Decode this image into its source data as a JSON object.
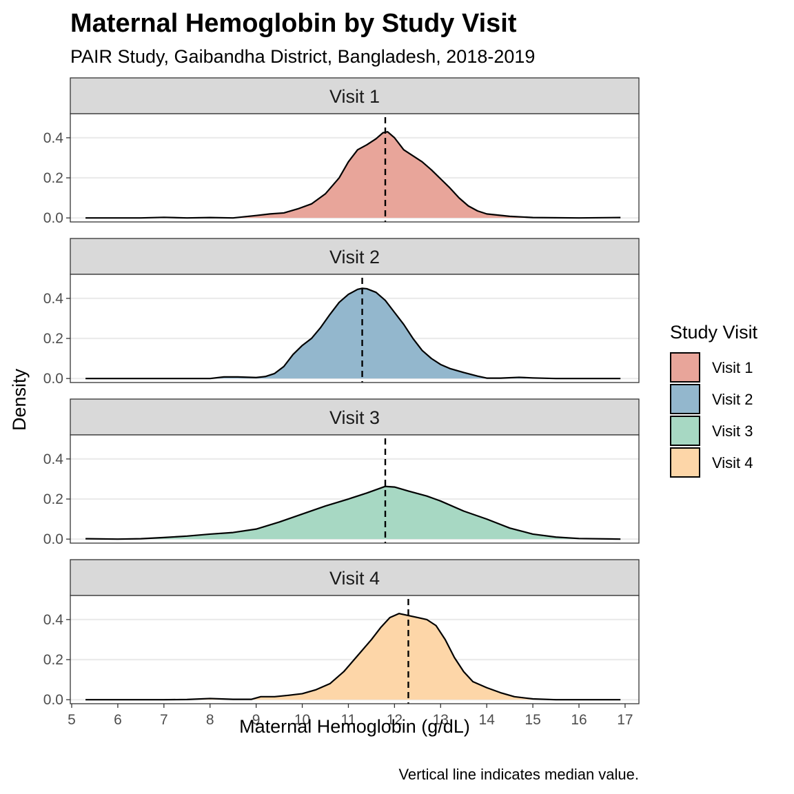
{
  "chart_data": {
    "type": "area",
    "title": "Maternal Hemoglobin by Study Visit",
    "subtitle": "PAIR Study, Gaibandha District, Bangladesh, 2018-2019",
    "xlabel": "Maternal Hemoglobin (g/dL)",
    "ylabel": "Density",
    "caption": "Vertical line indicates median value.",
    "xlim": [
      4.97,
      17.3
    ],
    "ylim": [
      -0.02,
      0.52
    ],
    "x_ticks": [
      5,
      6,
      7,
      8,
      9,
      10,
      11,
      12,
      13,
      14,
      15,
      16,
      17
    ],
    "y_ticks": [
      0.0,
      0.2,
      0.4
    ],
    "y_tick_labels": [
      "0.0",
      "0.2",
      "0.4"
    ],
    "grid": "horizontal major lines",
    "legend": {
      "title": "Study Visit",
      "position": "right"
    },
    "series": [
      {
        "name": "Visit 1",
        "facet_label": "Visit 1",
        "color": "#E8A59A",
        "median": 11.8,
        "points": [
          [
            5.3,
            0.0
          ],
          [
            6.5,
            0.0
          ],
          [
            7.0,
            0.003
          ],
          [
            7.5,
            0.0
          ],
          [
            8.0,
            0.002
          ],
          [
            8.5,
            0.0
          ],
          [
            9.0,
            0.012
          ],
          [
            9.3,
            0.02
          ],
          [
            9.6,
            0.025
          ],
          [
            9.9,
            0.045
          ],
          [
            10.2,
            0.07
          ],
          [
            10.5,
            0.12
          ],
          [
            10.8,
            0.2
          ],
          [
            11.0,
            0.28
          ],
          [
            11.2,
            0.34
          ],
          [
            11.4,
            0.365
          ],
          [
            11.6,
            0.395
          ],
          [
            11.75,
            0.425
          ],
          [
            11.85,
            0.43
          ],
          [
            12.0,
            0.4
          ],
          [
            12.2,
            0.34
          ],
          [
            12.4,
            0.31
          ],
          [
            12.6,
            0.28
          ],
          [
            12.8,
            0.24
          ],
          [
            13.0,
            0.195
          ],
          [
            13.2,
            0.15
          ],
          [
            13.4,
            0.1
          ],
          [
            13.6,
            0.06
          ],
          [
            13.8,
            0.035
          ],
          [
            14.0,
            0.02
          ],
          [
            14.5,
            0.008
          ],
          [
            15.0,
            0.002
          ],
          [
            16.0,
            0.0
          ],
          [
            16.9,
            0.002
          ]
        ]
      },
      {
        "name": "Visit 2",
        "facet_label": "Visit 2",
        "color": "#93B7CD",
        "median": 11.3,
        "points": [
          [
            5.3,
            0.0
          ],
          [
            7.0,
            0.0
          ],
          [
            8.0,
            0.0
          ],
          [
            8.3,
            0.008
          ],
          [
            8.6,
            0.008
          ],
          [
            9.0,
            0.005
          ],
          [
            9.2,
            0.01
          ],
          [
            9.4,
            0.025
          ],
          [
            9.6,
            0.06
          ],
          [
            9.8,
            0.12
          ],
          [
            10.0,
            0.165
          ],
          [
            10.2,
            0.2
          ],
          [
            10.4,
            0.255
          ],
          [
            10.6,
            0.32
          ],
          [
            10.8,
            0.38
          ],
          [
            11.0,
            0.42
          ],
          [
            11.2,
            0.445
          ],
          [
            11.3,
            0.45
          ],
          [
            11.4,
            0.448
          ],
          [
            11.6,
            0.43
          ],
          [
            11.8,
            0.39
          ],
          [
            12.0,
            0.33
          ],
          [
            12.2,
            0.27
          ],
          [
            12.4,
            0.2
          ],
          [
            12.6,
            0.14
          ],
          [
            12.8,
            0.1
          ],
          [
            13.0,
            0.07
          ],
          [
            13.2,
            0.05
          ],
          [
            13.5,
            0.03
          ],
          [
            13.8,
            0.012
          ],
          [
            14.0,
            0.002
          ],
          [
            14.3,
            0.002
          ],
          [
            14.7,
            0.006
          ],
          [
            15.0,
            0.003
          ],
          [
            15.5,
            0.0
          ],
          [
            16.9,
            0.0
          ]
        ]
      },
      {
        "name": "Visit 3",
        "facet_label": "Visit 3",
        "color": "#A7D8C3",
        "median": 11.8,
        "points": [
          [
            5.3,
            0.002
          ],
          [
            6.0,
            0.0
          ],
          [
            6.5,
            0.002
          ],
          [
            7.0,
            0.008
          ],
          [
            7.5,
            0.015
          ],
          [
            8.0,
            0.025
          ],
          [
            8.5,
            0.033
          ],
          [
            9.0,
            0.05
          ],
          [
            9.5,
            0.085
          ],
          [
            10.0,
            0.125
          ],
          [
            10.5,
            0.165
          ],
          [
            11.0,
            0.2
          ],
          [
            11.4,
            0.23
          ],
          [
            11.8,
            0.263
          ],
          [
            12.0,
            0.26
          ],
          [
            12.3,
            0.24
          ],
          [
            12.7,
            0.215
          ],
          [
            13.0,
            0.19
          ],
          [
            13.5,
            0.14
          ],
          [
            14.0,
            0.1
          ],
          [
            14.5,
            0.055
          ],
          [
            15.0,
            0.025
          ],
          [
            15.5,
            0.01
          ],
          [
            16.0,
            0.003
          ],
          [
            16.9,
            0.0
          ]
        ]
      },
      {
        "name": "Visit 4",
        "facet_label": "Visit 4",
        "color": "#FDD6A8",
        "median": 12.3,
        "points": [
          [
            5.3,
            0.0
          ],
          [
            7.0,
            0.0
          ],
          [
            7.5,
            0.001
          ],
          [
            8.0,
            0.006
          ],
          [
            8.5,
            0.002
          ],
          [
            8.9,
            0.002
          ],
          [
            9.1,
            0.015
          ],
          [
            9.4,
            0.015
          ],
          [
            9.7,
            0.022
          ],
          [
            10.0,
            0.03
          ],
          [
            10.3,
            0.05
          ],
          [
            10.6,
            0.08
          ],
          [
            10.9,
            0.14
          ],
          [
            11.2,
            0.22
          ],
          [
            11.5,
            0.3
          ],
          [
            11.7,
            0.36
          ],
          [
            11.9,
            0.41
          ],
          [
            12.1,
            0.43
          ],
          [
            12.3,
            0.42
          ],
          [
            12.5,
            0.41
          ],
          [
            12.7,
            0.4
          ],
          [
            12.9,
            0.37
          ],
          [
            13.1,
            0.3
          ],
          [
            13.3,
            0.21
          ],
          [
            13.5,
            0.14
          ],
          [
            13.7,
            0.09
          ],
          [
            14.0,
            0.06
          ],
          [
            14.3,
            0.035
          ],
          [
            14.6,
            0.015
          ],
          [
            15.0,
            0.004
          ],
          [
            15.5,
            0.0
          ],
          [
            16.9,
            0.0
          ]
        ]
      }
    ]
  }
}
